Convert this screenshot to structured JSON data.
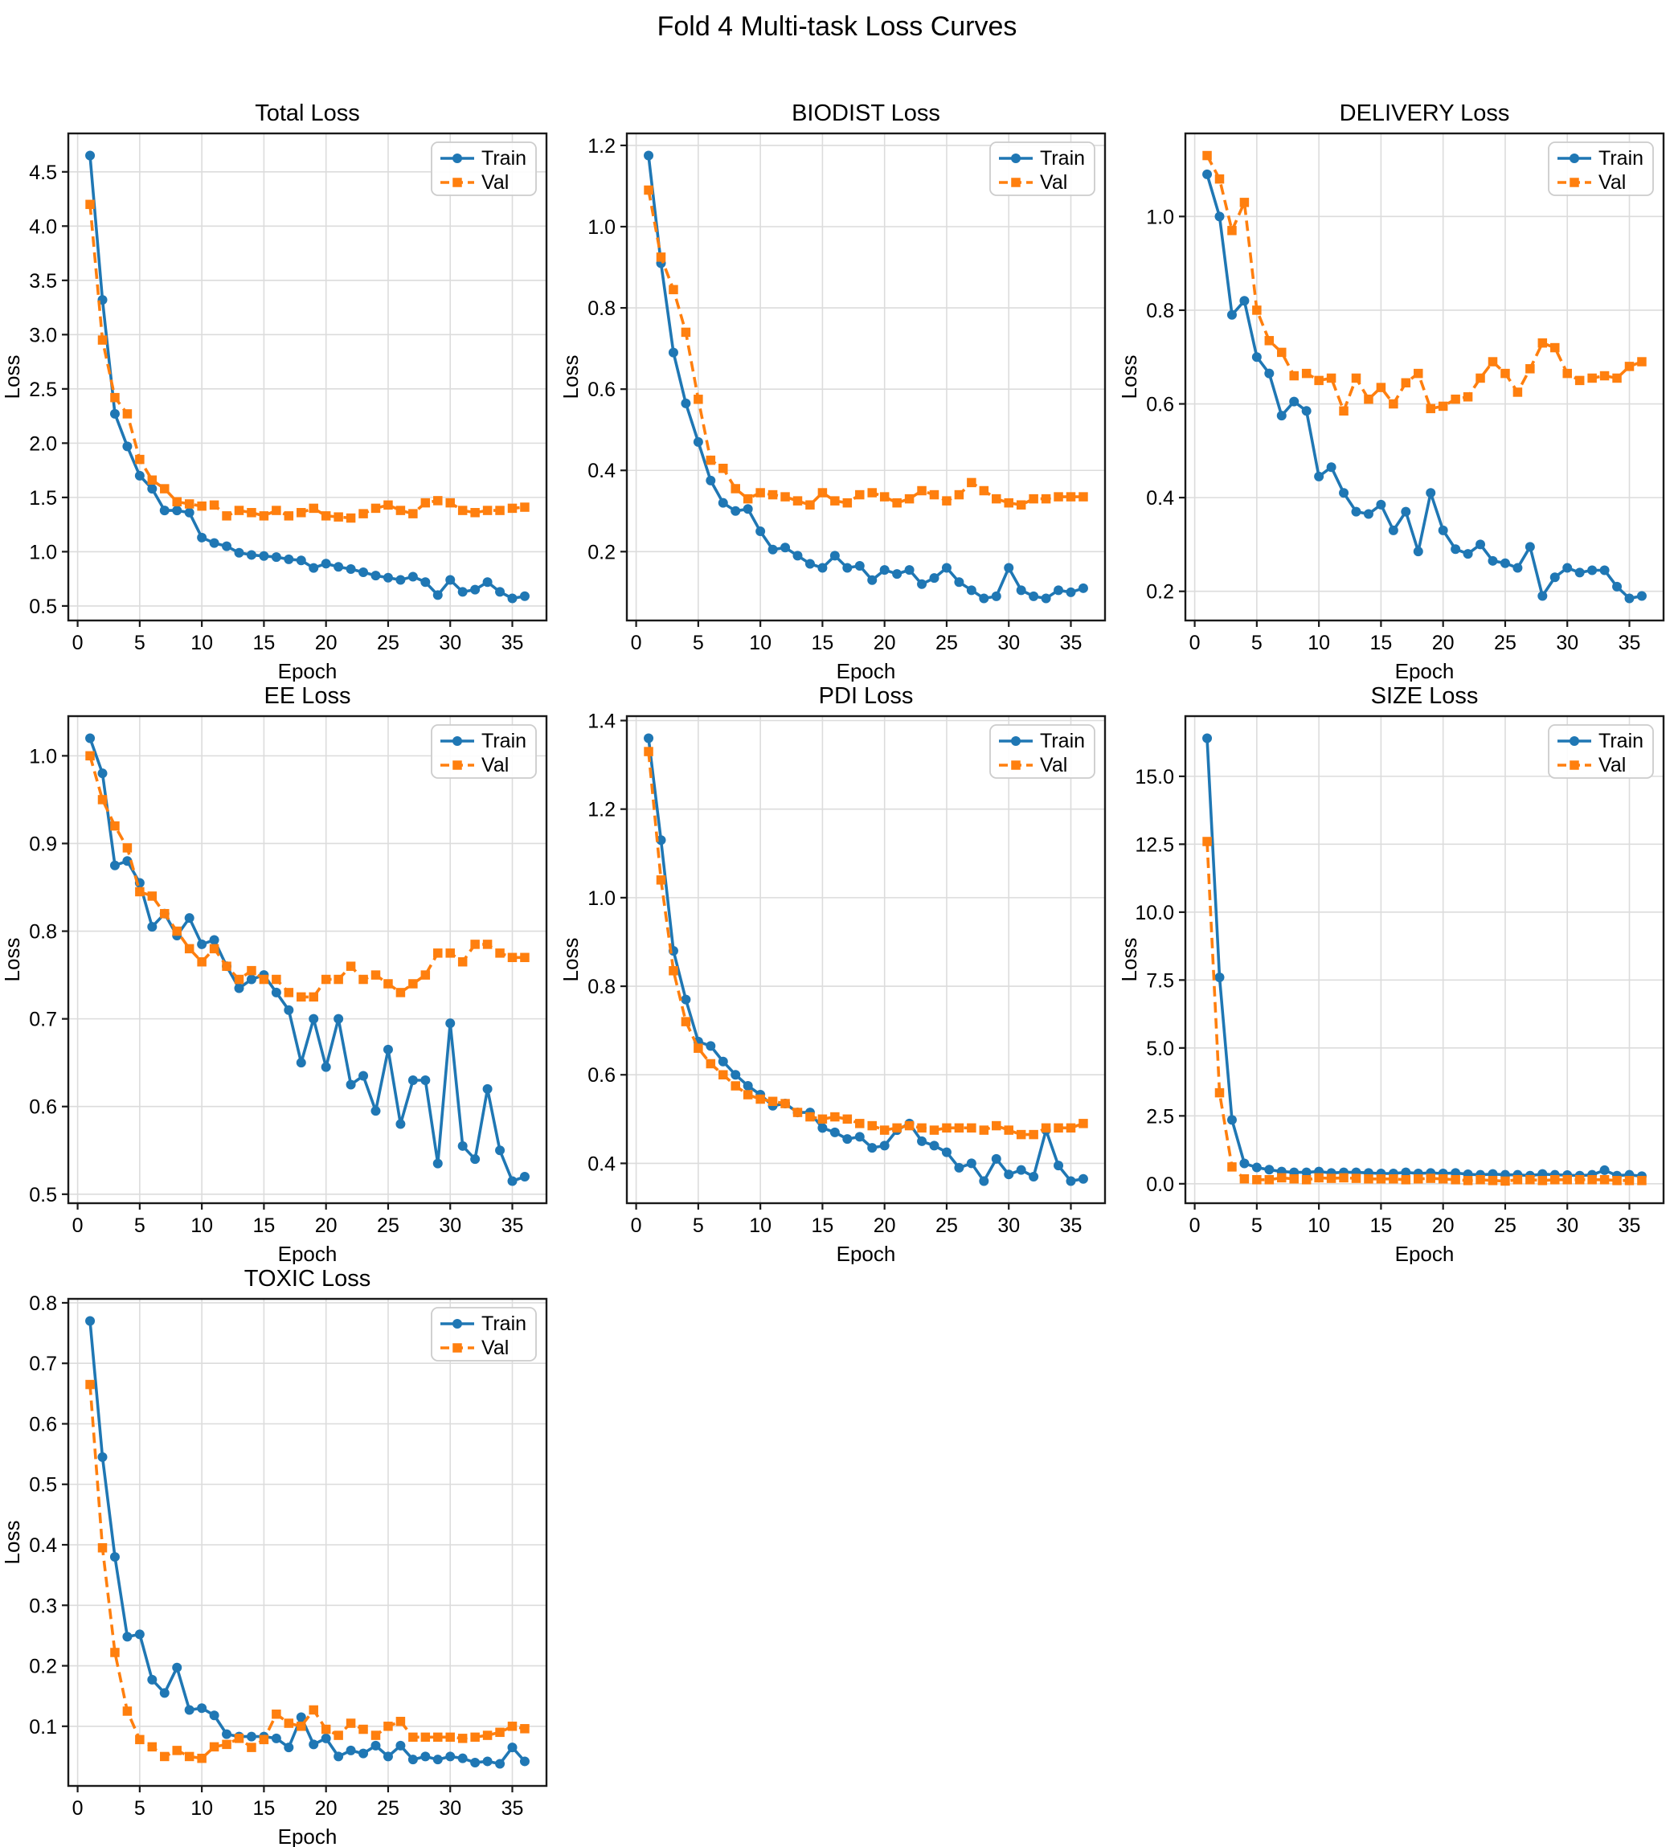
{
  "figure": {
    "suptitle": "Fold 4 Multi-task Loss Curves"
  },
  "colors": {
    "train": "#1f77b4",
    "val": "#ff7f0e",
    "grid": "#dcdcdc",
    "spine": "#1a1a1a",
    "background": "#ffffff",
    "legend_border": "#cccccc",
    "text": "#000000"
  },
  "legend": {
    "position": "upper right",
    "labels": [
      "Train",
      "Val"
    ]
  },
  "chart_data": [
    {
      "type": "line",
      "title": "Total Loss",
      "xlabel": "Epoch",
      "ylabel": "Loss",
      "grid": true,
      "legend_position": "upper right",
      "x_ticks": [
        0,
        5,
        10,
        15,
        20,
        25,
        30,
        35
      ],
      "y_ticks": [
        0.5,
        1.0,
        1.5,
        2.0,
        2.5,
        3.0,
        3.5,
        4.0,
        4.5
      ],
      "x": [
        1,
        2,
        3,
        4,
        5,
        6,
        7,
        8,
        9,
        10,
        11,
        12,
        13,
        14,
        15,
        16,
        17,
        18,
        19,
        20,
        21,
        22,
        23,
        24,
        25,
        26,
        27,
        28,
        29,
        30,
        31,
        32,
        33,
        34,
        35,
        36
      ],
      "series": [
        {
          "name": "Train",
          "color": "#1f77b4",
          "style": "solid",
          "marker": "circle",
          "values": [
            4.65,
            3.32,
            2.27,
            1.97,
            1.7,
            1.58,
            1.38,
            1.38,
            1.36,
            1.13,
            1.08,
            1.05,
            0.99,
            0.97,
            0.96,
            0.95,
            0.93,
            0.92,
            0.85,
            0.89,
            0.86,
            0.84,
            0.81,
            0.78,
            0.76,
            0.74,
            0.77,
            0.72,
            0.6,
            0.74,
            0.63,
            0.65,
            0.72,
            0.63,
            0.57,
            0.59
          ]
        },
        {
          "name": "Val",
          "color": "#ff7f0e",
          "style": "dashed",
          "marker": "square",
          "values": [
            4.2,
            2.95,
            2.42,
            2.27,
            1.85,
            1.66,
            1.58,
            1.46,
            1.44,
            1.42,
            1.43,
            1.33,
            1.38,
            1.36,
            1.33,
            1.38,
            1.33,
            1.36,
            1.4,
            1.33,
            1.32,
            1.31,
            1.35,
            1.4,
            1.43,
            1.38,
            1.35,
            1.45,
            1.47,
            1.45,
            1.38,
            1.36,
            1.38,
            1.38,
            1.4,
            1.41
          ]
        }
      ]
    },
    {
      "type": "line",
      "title": "BIODIST Loss",
      "xlabel": "Epoch",
      "ylabel": "Loss",
      "grid": true,
      "legend_position": "upper right",
      "x_ticks": [
        0,
        5,
        10,
        15,
        20,
        25,
        30,
        35
      ],
      "y_ticks": [
        0.2,
        0.4,
        0.6,
        0.8,
        1.0,
        1.2
      ],
      "x": [
        1,
        2,
        3,
        4,
        5,
        6,
        7,
        8,
        9,
        10,
        11,
        12,
        13,
        14,
        15,
        16,
        17,
        18,
        19,
        20,
        21,
        22,
        23,
        24,
        25,
        26,
        27,
        28,
        29,
        30,
        31,
        32,
        33,
        34,
        35,
        36
      ],
      "series": [
        {
          "name": "Train",
          "color": "#1f77b4",
          "style": "solid",
          "marker": "circle",
          "values": [
            1.175,
            0.91,
            0.69,
            0.565,
            0.47,
            0.375,
            0.32,
            0.3,
            0.305,
            0.25,
            0.205,
            0.21,
            0.19,
            0.17,
            0.16,
            0.19,
            0.16,
            0.165,
            0.13,
            0.155,
            0.145,
            0.155,
            0.12,
            0.135,
            0.16,
            0.125,
            0.105,
            0.085,
            0.09,
            0.16,
            0.105,
            0.09,
            0.085,
            0.105,
            0.1,
            0.11
          ]
        },
        {
          "name": "Val",
          "color": "#ff7f0e",
          "style": "dashed",
          "marker": "square",
          "values": [
            1.09,
            0.925,
            0.845,
            0.74,
            0.575,
            0.425,
            0.405,
            0.355,
            0.33,
            0.345,
            0.34,
            0.335,
            0.325,
            0.315,
            0.345,
            0.325,
            0.32,
            0.34,
            0.345,
            0.335,
            0.32,
            0.33,
            0.35,
            0.34,
            0.325,
            0.34,
            0.37,
            0.35,
            0.33,
            0.32,
            0.315,
            0.33,
            0.33,
            0.335,
            0.335,
            0.335
          ]
        }
      ]
    },
    {
      "type": "line",
      "title": "DELIVERY Loss",
      "xlabel": "Epoch",
      "ylabel": "Loss",
      "grid": true,
      "legend_position": "upper right",
      "x_ticks": [
        0,
        5,
        10,
        15,
        20,
        25,
        30,
        35
      ],
      "y_ticks": [
        0.2,
        0.4,
        0.6,
        0.8,
        1.0
      ],
      "x": [
        1,
        2,
        3,
        4,
        5,
        6,
        7,
        8,
        9,
        10,
        11,
        12,
        13,
        14,
        15,
        16,
        17,
        18,
        19,
        20,
        21,
        22,
        23,
        24,
        25,
        26,
        27,
        28,
        29,
        30,
        31,
        32,
        33,
        34,
        35,
        36
      ],
      "series": [
        {
          "name": "Train",
          "color": "#1f77b4",
          "style": "solid",
          "marker": "circle",
          "values": [
            1.09,
            1.0,
            0.79,
            0.82,
            0.7,
            0.665,
            0.575,
            0.605,
            0.585,
            0.445,
            0.465,
            0.41,
            0.37,
            0.365,
            0.385,
            0.33,
            0.37,
            0.285,
            0.41,
            0.33,
            0.29,
            0.28,
            0.3,
            0.265,
            0.26,
            0.25,
            0.295,
            0.19,
            0.23,
            0.25,
            0.24,
            0.245,
            0.245,
            0.21,
            0.185,
            0.19
          ]
        },
        {
          "name": "Val",
          "color": "#ff7f0e",
          "style": "dashed",
          "marker": "square",
          "values": [
            1.13,
            1.08,
            0.97,
            1.03,
            0.8,
            0.735,
            0.71,
            0.66,
            0.665,
            0.65,
            0.655,
            0.585,
            0.655,
            0.61,
            0.635,
            0.6,
            0.645,
            0.665,
            0.59,
            0.595,
            0.61,
            0.615,
            0.655,
            0.69,
            0.665,
            0.625,
            0.675,
            0.73,
            0.72,
            0.665,
            0.65,
            0.655,
            0.66,
            0.655,
            0.68,
            0.69
          ]
        }
      ]
    },
    {
      "type": "line",
      "title": "EE Loss",
      "xlabel": "Epoch",
      "ylabel": "Loss",
      "grid": true,
      "legend_position": "upper right",
      "x_ticks": [
        0,
        5,
        10,
        15,
        20,
        25,
        30,
        35
      ],
      "y_ticks": [
        0.5,
        0.6,
        0.7,
        0.8,
        0.9,
        1.0
      ],
      "x": [
        1,
        2,
        3,
        4,
        5,
        6,
        7,
        8,
        9,
        10,
        11,
        12,
        13,
        14,
        15,
        16,
        17,
        18,
        19,
        20,
        21,
        22,
        23,
        24,
        25,
        26,
        27,
        28,
        29,
        30,
        31,
        32,
        33,
        34,
        35,
        36
      ],
      "series": [
        {
          "name": "Train",
          "color": "#1f77b4",
          "style": "solid",
          "marker": "circle",
          "values": [
            1.02,
            0.98,
            0.875,
            0.88,
            0.855,
            0.805,
            0.82,
            0.795,
            0.815,
            0.785,
            0.79,
            0.76,
            0.735,
            0.745,
            0.75,
            0.73,
            0.71,
            0.65,
            0.7,
            0.645,
            0.7,
            0.625,
            0.635,
            0.595,
            0.665,
            0.58,
            0.63,
            0.63,
            0.535,
            0.695,
            0.555,
            0.54,
            0.62,
            0.55,
            0.515,
            0.52
          ]
        },
        {
          "name": "Val",
          "color": "#ff7f0e",
          "style": "dashed",
          "marker": "square",
          "values": [
            1.0,
            0.95,
            0.92,
            0.895,
            0.845,
            0.84,
            0.82,
            0.8,
            0.78,
            0.765,
            0.78,
            0.76,
            0.745,
            0.755,
            0.745,
            0.745,
            0.73,
            0.725,
            0.725,
            0.745,
            0.745,
            0.76,
            0.745,
            0.75,
            0.74,
            0.73,
            0.74,
            0.75,
            0.775,
            0.775,
            0.765,
            0.785,
            0.785,
            0.775,
            0.77,
            0.77
          ]
        }
      ]
    },
    {
      "type": "line",
      "title": "PDI Loss",
      "xlabel": "Epoch",
      "ylabel": "Loss",
      "grid": true,
      "legend_position": "upper right",
      "x_ticks": [
        0,
        5,
        10,
        15,
        20,
        25,
        30,
        35
      ],
      "y_ticks": [
        0.4,
        0.6,
        0.8,
        1.0,
        1.2,
        1.4
      ],
      "x": [
        1,
        2,
        3,
        4,
        5,
        6,
        7,
        8,
        9,
        10,
        11,
        12,
        13,
        14,
        15,
        16,
        17,
        18,
        19,
        20,
        21,
        22,
        23,
        24,
        25,
        26,
        27,
        28,
        29,
        30,
        31,
        32,
        33,
        34,
        35,
        36
      ],
      "series": [
        {
          "name": "Train",
          "color": "#1f77b4",
          "style": "solid",
          "marker": "circle",
          "values": [
            1.36,
            1.13,
            0.88,
            0.77,
            0.675,
            0.665,
            0.63,
            0.6,
            0.575,
            0.555,
            0.53,
            0.535,
            0.515,
            0.515,
            0.48,
            0.47,
            0.455,
            0.46,
            0.435,
            0.44,
            0.475,
            0.49,
            0.45,
            0.44,
            0.425,
            0.39,
            0.4,
            0.36,
            0.41,
            0.375,
            0.385,
            0.37,
            0.475,
            0.395,
            0.36,
            0.365
          ]
        },
        {
          "name": "Val",
          "color": "#ff7f0e",
          "style": "dashed",
          "marker": "square",
          "values": [
            1.33,
            1.04,
            0.835,
            0.72,
            0.66,
            0.625,
            0.6,
            0.575,
            0.555,
            0.545,
            0.54,
            0.535,
            0.515,
            0.505,
            0.5,
            0.505,
            0.5,
            0.49,
            0.485,
            0.475,
            0.48,
            0.485,
            0.48,
            0.475,
            0.48,
            0.48,
            0.48,
            0.475,
            0.485,
            0.475,
            0.465,
            0.465,
            0.48,
            0.48,
            0.48,
            0.49
          ]
        }
      ]
    },
    {
      "type": "line",
      "title": "SIZE Loss",
      "xlabel": "Epoch",
      "ylabel": "Loss",
      "grid": true,
      "legend_position": "upper right",
      "x_ticks": [
        0,
        5,
        10,
        15,
        20,
        25,
        30,
        35
      ],
      "y_ticks": [
        0.0,
        2.5,
        5.0,
        7.5,
        10.0,
        12.5,
        15.0
      ],
      "x": [
        1,
        2,
        3,
        4,
        5,
        6,
        7,
        8,
        9,
        10,
        11,
        12,
        13,
        14,
        15,
        16,
        17,
        18,
        19,
        20,
        21,
        22,
        23,
        24,
        25,
        26,
        27,
        28,
        29,
        30,
        31,
        32,
        33,
        34,
        35,
        36
      ],
      "series": [
        {
          "name": "Train",
          "color": "#1f77b4",
          "style": "solid",
          "marker": "circle",
          "values": [
            16.4,
            7.6,
            2.35,
            0.75,
            0.6,
            0.52,
            0.45,
            0.42,
            0.42,
            0.45,
            0.4,
            0.42,
            0.42,
            0.4,
            0.38,
            0.38,
            0.42,
            0.38,
            0.4,
            0.38,
            0.4,
            0.35,
            0.33,
            0.36,
            0.33,
            0.33,
            0.3,
            0.36,
            0.33,
            0.32,
            0.3,
            0.33,
            0.5,
            0.3,
            0.33,
            0.28
          ]
        },
        {
          "name": "Val",
          "color": "#ff7f0e",
          "style": "dashed",
          "marker": "square",
          "values": [
            12.6,
            3.35,
            0.62,
            0.18,
            0.15,
            0.15,
            0.22,
            0.18,
            0.15,
            0.22,
            0.2,
            0.22,
            0.2,
            0.18,
            0.18,
            0.18,
            0.15,
            0.18,
            0.2,
            0.18,
            0.15,
            0.12,
            0.15,
            0.12,
            0.1,
            0.15,
            0.15,
            0.12,
            0.15,
            0.15,
            0.15,
            0.15,
            0.15,
            0.12,
            0.12,
            0.12
          ]
        }
      ]
    },
    {
      "type": "line",
      "title": "TOXIC Loss",
      "xlabel": "Epoch",
      "ylabel": "Loss",
      "grid": true,
      "legend_position": "upper right",
      "x_ticks": [
        0,
        5,
        10,
        15,
        20,
        25,
        30,
        35
      ],
      "y_ticks": [
        0.1,
        0.2,
        0.3,
        0.4,
        0.5,
        0.6,
        0.7,
        0.8
      ],
      "x": [
        1,
        2,
        3,
        4,
        5,
        6,
        7,
        8,
        9,
        10,
        11,
        12,
        13,
        14,
        15,
        16,
        17,
        18,
        19,
        20,
        21,
        22,
        23,
        24,
        25,
        26,
        27,
        28,
        29,
        30,
        31,
        32,
        33,
        34,
        35,
        36
      ],
      "series": [
        {
          "name": "Train",
          "color": "#1f77b4",
          "style": "solid",
          "marker": "circle",
          "values": [
            0.77,
            0.545,
            0.38,
            0.248,
            0.252,
            0.177,
            0.155,
            0.197,
            0.127,
            0.13,
            0.118,
            0.087,
            0.083,
            0.083,
            0.083,
            0.08,
            0.065,
            0.115,
            0.07,
            0.08,
            0.05,
            0.06,
            0.055,
            0.068,
            0.05,
            0.068,
            0.045,
            0.05,
            0.045,
            0.05,
            0.047,
            0.04,
            0.042,
            0.038,
            0.065,
            0.042
          ]
        },
        {
          "name": "Val",
          "color": "#ff7f0e",
          "style": "dashed",
          "marker": "square",
          "values": [
            0.665,
            0.395,
            0.222,
            0.125,
            0.078,
            0.066,
            0.05,
            0.06,
            0.05,
            0.047,
            0.066,
            0.07,
            0.08,
            0.065,
            0.078,
            0.12,
            0.105,
            0.1,
            0.127,
            0.095,
            0.085,
            0.105,
            0.095,
            0.085,
            0.1,
            0.108,
            0.082,
            0.082,
            0.082,
            0.082,
            0.08,
            0.082,
            0.085,
            0.09,
            0.1,
            0.096
          ]
        }
      ]
    }
  ]
}
